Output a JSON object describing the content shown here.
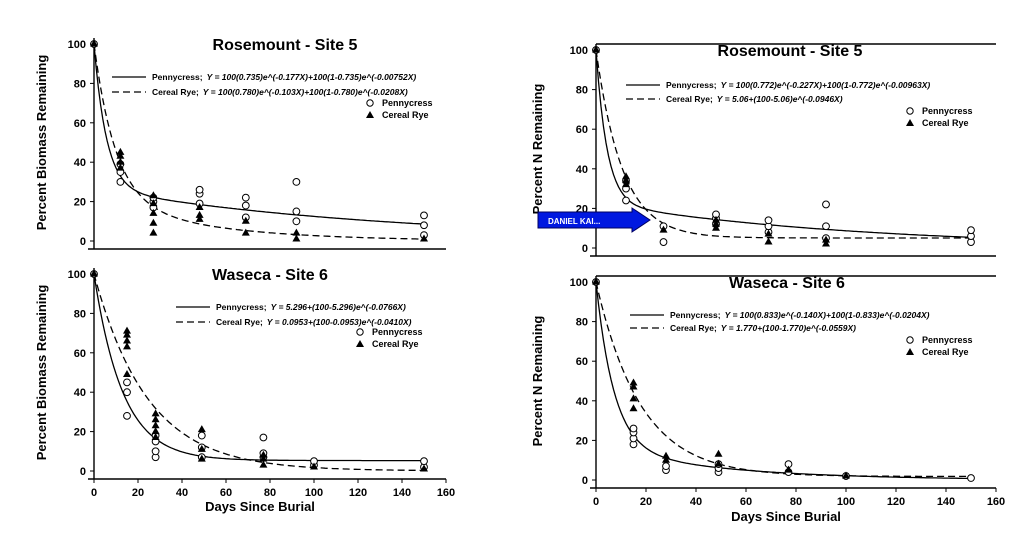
{
  "chart_data": [
    {
      "type": "scatter",
      "title": "Rosemount - Site 5",
      "xlabel": "",
      "ylabel": "Percent Biomass Remaining",
      "xlim": [
        0,
        160
      ],
      "ylim": [
        0,
        100
      ],
      "yticks": [
        "0",
        "20",
        "40",
        "60",
        "80",
        "100"
      ],
      "xticks": [],
      "legend_entries": [
        "Pennycress",
        "Cereal Rye"
      ],
      "curve_labels": [
        {
          "name": "Pennycress;",
          "equation": "Y = 100(0.735)e^(-0.177X)+100(1-0.735)e^(-0.00752X)"
        },
        {
          "name": "Cereal Rye;",
          "equation": "Y = 100(0.780)e^(-0.103X)+100(1-0.780)e^(-0.0208X)"
        }
      ],
      "series": [
        {
          "name": "Pennycress",
          "model": "double",
          "params": [
            0.735,
            0.177,
            0.00752
          ],
          "x": [
            0,
            12,
            12,
            12,
            27,
            27,
            27,
            48,
            48,
            48,
            69,
            69,
            69,
            92,
            92,
            92,
            150,
            150,
            150
          ],
          "y": [
            100,
            30,
            35,
            39,
            17,
            20,
            22,
            19,
            24,
            26,
            12,
            18,
            22,
            10,
            15,
            30,
            3,
            8,
            13
          ]
        },
        {
          "name": "Cereal Rye",
          "model": "double",
          "params": [
            0.78,
            0.103,
            0.0208
          ],
          "x": [
            0,
            12,
            12,
            12,
            12,
            27,
            27,
            27,
            27,
            27,
            48,
            48,
            48,
            69,
            69,
            92,
            92,
            150
          ],
          "y": [
            100,
            37,
            40,
            43,
            45,
            4,
            9,
            14,
            19,
            23,
            11,
            13,
            17,
            4,
            10,
            1,
            4,
            1
          ]
        }
      ]
    },
    {
      "type": "scatter",
      "title": "Waseca - Site 6",
      "xlabel": "Days Since Burial",
      "ylabel": "Percent Biomass Remaining",
      "xlim": [
        0,
        160
      ],
      "ylim": [
        0,
        100
      ],
      "yticks": [
        "0",
        "20",
        "40",
        "60",
        "80",
        "100"
      ],
      "xticks": [
        "0",
        "20",
        "40",
        "60",
        "80",
        "100",
        "120",
        "140",
        "160"
      ],
      "legend_entries": [
        "Pennycress",
        "Cereal Rye"
      ],
      "curve_labels": [
        {
          "name": "Pennycress;",
          "equation": "Y = 5.296+(100-5.296)e^(-0.0766X)"
        },
        {
          "name": "Cereal Rye;",
          "equation": "Y = 0.0953+(100-0.0953)e^(-0.0410X)"
        }
      ],
      "series": [
        {
          "name": "Pennycress",
          "model": "single",
          "params": [
            5.296,
            0.0766
          ],
          "x": [
            0,
            15,
            15,
            15,
            28,
            28,
            28,
            28,
            49,
            49,
            49,
            77,
            77,
            77,
            100,
            100,
            150,
            150
          ],
          "y": [
            100,
            28,
            40,
            45,
            7,
            10,
            15,
            18,
            7,
            12,
            18,
            7,
            9,
            17,
            3,
            5,
            2,
            5
          ]
        },
        {
          "name": "Cereal Rye",
          "model": "single",
          "params": [
            0.0953,
            0.041
          ],
          "x": [
            0,
            15,
            15,
            15,
            15,
            15,
            28,
            28,
            28,
            28,
            28,
            49,
            49,
            49,
            77,
            77,
            77,
            100,
            150
          ],
          "y": [
            100,
            49,
            63,
            66,
            69,
            71,
            17,
            20,
            23,
            26,
            29,
            6,
            11,
            21,
            3,
            6,
            8,
            2,
            1
          ]
        }
      ]
    },
    {
      "type": "scatter",
      "title": "Rosemount - Site 5",
      "xlabel": "",
      "ylabel": "Percent N Remaining",
      "xlim": [
        0,
        160
      ],
      "ylim": [
        0,
        100
      ],
      "yticks": [
        "0",
        "20",
        "40",
        "60",
        "80",
        "100"
      ],
      "xticks": [],
      "legend_entries": [
        "Pennycress",
        "Cereal Rye"
      ],
      "curve_labels": [
        {
          "name": "Pennycress;",
          "equation": "Y = 100(0.772)e^(-0.227X)+100(1-0.772)e^(-0.00963X)"
        },
        {
          "name": "Cereal Rye;",
          "equation": "Y = 5.06+(100-5.06)e^(-0.0946X)"
        }
      ],
      "series": [
        {
          "name": "Pennycress",
          "model": "double",
          "params": [
            0.772,
            0.227,
            0.00963
          ],
          "x": [
            0,
            12,
            12,
            12,
            27,
            27,
            48,
            48,
            48,
            69,
            69,
            69,
            92,
            92,
            92,
            150,
            150,
            150
          ],
          "y": [
            100,
            24,
            30,
            34,
            3,
            11,
            12,
            15,
            17,
            8,
            11,
            14,
            5,
            11,
            22,
            3,
            6,
            9
          ]
        },
        {
          "name": "Cereal Rye",
          "model": "single",
          "params": [
            5.06,
            0.0946
          ],
          "x": [
            0,
            12,
            12,
            12,
            27,
            48,
            48,
            48,
            69,
            69,
            92,
            92
          ],
          "y": [
            100,
            32,
            34,
            36,
            9,
            10,
            12,
            14,
            3,
            7,
            2,
            4
          ]
        }
      ]
    },
    {
      "type": "scatter",
      "title": "Waseca - Site 6",
      "xlabel": "Days Since Burial",
      "ylabel": "Percent N Remaining",
      "xlim": [
        0,
        160
      ],
      "ylim": [
        0,
        100
      ],
      "yticks": [
        "0",
        "20",
        "40",
        "60",
        "80",
        "100"
      ],
      "xticks": [
        "0",
        "20",
        "40",
        "60",
        "80",
        "100",
        "120",
        "140",
        "160"
      ],
      "legend_entries": [
        "Pennycress",
        "Cereal Rye"
      ],
      "curve_labels": [
        {
          "name": "Pennycress;",
          "equation": "Y = 100(0.833)e^(-0.140X)+100(1-0.833)e^(-0.0204X)"
        },
        {
          "name": "Cereal Rye;",
          "equation": "Y = 1.770+(100-1.770)e^(-0.0559X)"
        }
      ],
      "series": [
        {
          "name": "Pennycress",
          "model": "double",
          "params": [
            0.833,
            0.14,
            0.0204
          ],
          "x": [
            0,
            15,
            15,
            15,
            15,
            28,
            28,
            49,
            49,
            49,
            77,
            77,
            100,
            150
          ],
          "y": [
            100,
            18,
            21,
            24,
            26,
            5,
            7,
            4,
            6,
            8,
            4,
            8,
            2,
            1
          ]
        },
        {
          "name": "Cereal Rye",
          "model": "single",
          "params": [
            1.77,
            0.0559
          ],
          "x": [
            0,
            15,
            15,
            15,
            15,
            28,
            28,
            49,
            49,
            77,
            100
          ],
          "y": [
            100,
            36,
            41,
            47,
            49,
            10,
            12,
            8,
            13,
            5,
            2
          ]
        }
      ]
    }
  ],
  "overlay_tag": {
    "label": "DANIEL KAI...",
    "color": "#0018e0"
  },
  "colors": {
    "axis": "#000000",
    "pennycress_line": "#000000",
    "rye_line": "#000000"
  }
}
